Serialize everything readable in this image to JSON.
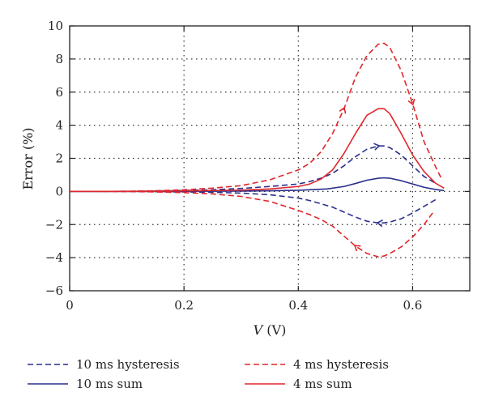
{
  "chart_data": {
    "type": "line",
    "title": "",
    "xlabel_var": "V",
    "xlabel_unit": " (V)",
    "ylabel": "Error (%)",
    "xlim": [
      0,
      0.7
    ],
    "ylim": [
      -6,
      10
    ],
    "xticks": [
      0,
      0.2,
      0.4,
      0.6
    ],
    "xtick_labels": [
      "0",
      "0.2",
      "0.4",
      "0.6"
    ],
    "yticks": [
      -6,
      -4,
      -2,
      0,
      2,
      4,
      6,
      8,
      10
    ],
    "ytick_labels": [
      "−6",
      "−4",
      "−2",
      "0",
      "2",
      "4",
      "6",
      "8",
      "10"
    ],
    "grid": true,
    "legend_position": "bottom",
    "colors": {
      "blue": "#2a2f8c",
      "red": "#e0262b"
    },
    "series": [
      {
        "name": "10 ms hysteresis",
        "style": "dashed",
        "color": "#2a2f8c",
        "x": [
          0.64,
          0.62,
          0.6,
          0.58,
          0.56,
          0.55,
          0.54,
          0.52,
          0.5,
          0.48,
          0.46,
          0.44,
          0.42,
          0.4,
          0.35,
          0.3,
          0.25,
          0.2,
          0.15,
          0.1,
          0.05,
          0.0,
          0.0,
          0.05,
          0.1,
          0.15,
          0.2,
          0.25,
          0.3,
          0.35,
          0.4,
          0.42,
          0.44,
          0.46,
          0.48,
          0.5,
          0.52,
          0.54,
          0.55,
          0.56,
          0.58,
          0.6,
          0.62,
          0.64
        ],
        "y": [
          -0.5,
          -0.9,
          -1.3,
          -1.65,
          -1.85,
          -1.9,
          -1.9,
          -1.8,
          -1.55,
          -1.25,
          -0.95,
          -0.75,
          -0.55,
          -0.4,
          -0.2,
          -0.1,
          -0.05,
          -0.03,
          -0.01,
          0,
          0,
          0,
          0,
          0,
          0.01,
          0.03,
          0.06,
          0.1,
          0.18,
          0.3,
          0.45,
          0.6,
          0.8,
          1.1,
          1.55,
          2.1,
          2.55,
          2.75,
          2.75,
          2.65,
          2.2,
          1.55,
          0.9,
          0.5
        ],
        "arrows_at_index": [
          6,
          37
        ]
      },
      {
        "name": "10 ms sum",
        "style": "solid",
        "color": "#2a2f8c",
        "x": [
          0.0,
          0.1,
          0.2,
          0.3,
          0.35,
          0.4,
          0.45,
          0.48,
          0.5,
          0.52,
          0.54,
          0.55,
          0.56,
          0.58,
          0.6,
          0.62,
          0.64,
          0.655
        ],
        "y": [
          0,
          0,
          0.01,
          0.02,
          0.04,
          0.07,
          0.15,
          0.3,
          0.48,
          0.68,
          0.8,
          0.82,
          0.8,
          0.65,
          0.45,
          0.25,
          0.12,
          0.05
        ]
      },
      {
        "name": "4 ms hysteresis",
        "style": "dashed",
        "color": "#e0262b",
        "x": [
          0.635,
          0.62,
          0.6,
          0.58,
          0.56,
          0.55,
          0.54,
          0.52,
          0.5,
          0.48,
          0.46,
          0.44,
          0.42,
          0.4,
          0.35,
          0.3,
          0.25,
          0.2,
          0.15,
          0.1,
          0.05,
          0.0,
          0.0,
          0.05,
          0.1,
          0.15,
          0.2,
          0.25,
          0.3,
          0.35,
          0.4,
          0.42,
          0.44,
          0.46,
          0.48,
          0.5,
          0.52,
          0.54,
          0.55,
          0.56,
          0.58,
          0.6,
          0.62,
          0.64,
          0.65
        ],
        "y": [
          -1.3,
          -2.0,
          -2.75,
          -3.35,
          -3.75,
          -3.9,
          -3.95,
          -3.75,
          -3.3,
          -2.7,
          -2.1,
          -1.7,
          -1.4,
          -1.15,
          -0.6,
          -0.3,
          -0.15,
          -0.07,
          -0.03,
          -0.01,
          0,
          0,
          0,
          0,
          0.01,
          0.04,
          0.1,
          0.2,
          0.35,
          0.7,
          1.3,
          1.7,
          2.4,
          3.5,
          5.0,
          6.9,
          8.2,
          8.9,
          8.95,
          8.7,
          7.3,
          5.3,
          3.0,
          1.5,
          0.8
        ],
        "arrows_at_index": [
          8,
          34,
          41
        ]
      },
      {
        "name": "4 ms sum",
        "style": "solid",
        "color": "#e0262b",
        "x": [
          0.0,
          0.1,
          0.2,
          0.3,
          0.35,
          0.4,
          0.42,
          0.44,
          0.46,
          0.48,
          0.5,
          0.52,
          0.54,
          0.55,
          0.56,
          0.58,
          0.6,
          0.62,
          0.64,
          0.655
        ],
        "y": [
          0,
          0,
          0.03,
          0.08,
          0.15,
          0.3,
          0.45,
          0.75,
          1.3,
          2.3,
          3.5,
          4.6,
          5.0,
          5.0,
          4.7,
          3.5,
          2.2,
          1.2,
          0.5,
          0.2
        ]
      }
    ]
  }
}
